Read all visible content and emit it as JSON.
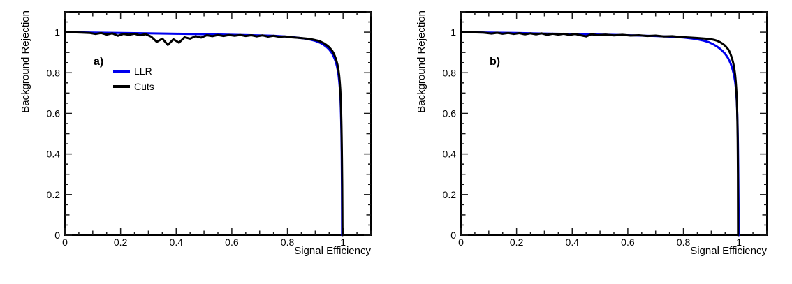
{
  "figure": {
    "background": "#ffffff",
    "accent_blue": "#0000ee",
    "line_black": "#000000"
  },
  "chart_data": [
    {
      "type": "line",
      "panel_label": "a)",
      "xlabel": "Signal Efficiency",
      "ylabel": "Background Rejection",
      "xlim": [
        0,
        1.1
      ],
      "ylim": [
        0,
        1.1
      ],
      "grid": false,
      "x_ticks": {
        "major": [
          {
            "v": 0,
            "label": "0"
          },
          {
            "v": 0.2,
            "label": "0.2"
          },
          {
            "v": 0.4,
            "label": "0.4"
          },
          {
            "v": 0.6,
            "label": "0.6"
          },
          {
            "v": 0.8,
            "label": "0.8"
          },
          {
            "v": 1.0,
            "label": "1"
          }
        ],
        "minor_step": 0.05
      },
      "y_ticks": {
        "major": [
          {
            "v": 0,
            "label": "0"
          },
          {
            "v": 0.2,
            "label": "0.2"
          },
          {
            "v": 0.4,
            "label": "0.4"
          },
          {
            "v": 0.6,
            "label": "0.6"
          },
          {
            "v": 0.8,
            "label": "0.8"
          },
          {
            "v": 1.0,
            "label": "1"
          }
        ],
        "minor_step": 0.05
      },
      "legend": {
        "visible": true,
        "position": "upper-left",
        "entries": [
          {
            "name": "LLR",
            "color": "#0000ee"
          },
          {
            "name": "Cuts",
            "color": "#000000"
          }
        ]
      },
      "series": [
        {
          "name": "LLR",
          "color": "#0000ee",
          "width": 3,
          "points": [
            [
              0,
              1.0
            ],
            [
              0.1,
              0.998
            ],
            [
              0.2,
              0.996
            ],
            [
              0.3,
              0.994
            ],
            [
              0.4,
              0.992
            ],
            [
              0.5,
              0.99
            ],
            [
              0.6,
              0.987
            ],
            [
              0.7,
              0.984
            ],
            [
              0.75,
              0.982
            ],
            [
              0.8,
              0.978
            ],
            [
              0.83,
              0.974
            ],
            [
              0.86,
              0.969
            ],
            [
              0.88,
              0.964
            ],
            [
              0.9,
              0.957
            ],
            [
              0.91,
              0.952
            ],
            [
              0.92,
              0.946
            ],
            [
              0.93,
              0.938
            ],
            [
              0.94,
              0.928
            ],
            [
              0.95,
              0.915
            ],
            [
              0.955,
              0.906
            ],
            [
              0.96,
              0.896
            ],
            [
              0.965,
              0.884
            ],
            [
              0.97,
              0.868
            ],
            [
              0.975,
              0.848
            ],
            [
              0.978,
              0.832
            ],
            [
              0.981,
              0.812
            ],
            [
              0.984,
              0.785
            ],
            [
              0.986,
              0.76
            ],
            [
              0.988,
              0.73
            ],
            [
              0.99,
              0.69
            ],
            [
              0.991,
              0.66
            ],
            [
              0.992,
              0.62
            ],
            [
              0.993,
              0.57
            ],
            [
              0.994,
              0.5
            ],
            [
              0.995,
              0.41
            ],
            [
              0.9955,
              0.33
            ],
            [
              0.996,
              0.23
            ],
            [
              0.9962,
              0.13
            ],
            [
              0.9965,
              0.0
            ]
          ]
        },
        {
          "name": "Cuts",
          "color": "#000000",
          "width": 3,
          "points": [
            [
              0,
              1.0
            ],
            [
              0.03,
              0.999
            ],
            [
              0.06,
              0.998
            ],
            [
              0.09,
              0.996
            ],
            [
              0.11,
              0.991
            ],
            [
              0.13,
              0.996
            ],
            [
              0.15,
              0.988
            ],
            [
              0.17,
              0.994
            ],
            [
              0.19,
              0.982
            ],
            [
              0.21,
              0.991
            ],
            [
              0.23,
              0.987
            ],
            [
              0.25,
              0.992
            ],
            [
              0.27,
              0.984
            ],
            [
              0.29,
              0.99
            ],
            [
              0.31,
              0.978
            ],
            [
              0.33,
              0.952
            ],
            [
              0.35,
              0.968
            ],
            [
              0.37,
              0.937
            ],
            [
              0.39,
              0.965
            ],
            [
              0.41,
              0.948
            ],
            [
              0.43,
              0.975
            ],
            [
              0.45,
              0.968
            ],
            [
              0.47,
              0.98
            ],
            [
              0.49,
              0.973
            ],
            [
              0.51,
              0.985
            ],
            [
              0.53,
              0.98
            ],
            [
              0.55,
              0.986
            ],
            [
              0.57,
              0.981
            ],
            [
              0.59,
              0.986
            ],
            [
              0.61,
              0.982
            ],
            [
              0.63,
              0.986
            ],
            [
              0.65,
              0.981
            ],
            [
              0.67,
              0.985
            ],
            [
              0.69,
              0.979
            ],
            [
              0.71,
              0.984
            ],
            [
              0.73,
              0.978
            ],
            [
              0.75,
              0.982
            ],
            [
              0.77,
              0.977
            ],
            [
              0.79,
              0.979
            ],
            [
              0.81,
              0.975
            ],
            [
              0.84,
              0.972
            ],
            [
              0.87,
              0.968
            ],
            [
              0.89,
              0.964
            ],
            [
              0.91,
              0.958
            ],
            [
              0.92,
              0.953
            ],
            [
              0.93,
              0.946
            ],
            [
              0.94,
              0.937
            ],
            [
              0.95,
              0.926
            ],
            [
              0.96,
              0.91
            ],
            [
              0.965,
              0.899
            ],
            [
              0.97,
              0.884
            ],
            [
              0.975,
              0.866
            ],
            [
              0.98,
              0.84
            ],
            [
              0.983,
              0.818
            ],
            [
              0.986,
              0.788
            ],
            [
              0.988,
              0.758
            ],
            [
              0.99,
              0.72
            ],
            [
              0.992,
              0.66
            ],
            [
              0.993,
              0.615
            ],
            [
              0.994,
              0.555
            ],
            [
              0.995,
              0.48
            ],
            [
              0.996,
              0.38
            ],
            [
              0.997,
              0.25
            ],
            [
              0.9975,
              0.14
            ],
            [
              0.998,
              0.0
            ]
          ]
        }
      ]
    },
    {
      "type": "line",
      "panel_label": "b)",
      "xlabel": "Signal Efficiency",
      "ylabel": "Background Rejection",
      "xlim": [
        0,
        1.1
      ],
      "ylim": [
        0,
        1.1
      ],
      "grid": false,
      "x_ticks": {
        "major": [
          {
            "v": 0,
            "label": "0"
          },
          {
            "v": 0.2,
            "label": "0.2"
          },
          {
            "v": 0.4,
            "label": "0.4"
          },
          {
            "v": 0.6,
            "label": "0.6"
          },
          {
            "v": 0.8,
            "label": "0.8"
          },
          {
            "v": 1.0,
            "label": "1"
          }
        ],
        "minor_step": 0.05
      },
      "y_ticks": {
        "major": [
          {
            "v": 0,
            "label": "0"
          },
          {
            "v": 0.2,
            "label": "0.2"
          },
          {
            "v": 0.4,
            "label": "0.4"
          },
          {
            "v": 0.6,
            "label": "0.6"
          },
          {
            "v": 0.8,
            "label": "0.8"
          },
          {
            "v": 1.0,
            "label": "1"
          }
        ],
        "minor_step": 0.05
      },
      "legend": {
        "visible": false,
        "entries": []
      },
      "series": [
        {
          "name": "LLR",
          "color": "#0000ee",
          "width": 3,
          "points": [
            [
              0,
              1.0
            ],
            [
              0.1,
              0.998
            ],
            [
              0.2,
              0.996
            ],
            [
              0.3,
              0.993
            ],
            [
              0.4,
              0.991
            ],
            [
              0.5,
              0.988
            ],
            [
              0.6,
              0.985
            ],
            [
              0.7,
              0.981
            ],
            [
              0.75,
              0.978
            ],
            [
              0.8,
              0.974
            ],
            [
              0.83,
              0.969
            ],
            [
              0.85,
              0.965
            ],
            [
              0.87,
              0.959
            ],
            [
              0.88,
              0.955
            ],
            [
              0.89,
              0.951
            ],
            [
              0.9,
              0.945
            ],
            [
              0.91,
              0.938
            ],
            [
              0.92,
              0.93
            ],
            [
              0.93,
              0.92
            ],
            [
              0.94,
              0.908
            ],
            [
              0.95,
              0.893
            ],
            [
              0.96,
              0.873
            ],
            [
              0.965,
              0.86
            ],
            [
              0.97,
              0.845
            ],
            [
              0.975,
              0.825
            ],
            [
              0.98,
              0.8
            ],
            [
              0.983,
              0.78
            ],
            [
              0.986,
              0.755
            ],
            [
              0.988,
              0.732
            ],
            [
              0.99,
              0.7
            ],
            [
              0.992,
              0.655
            ],
            [
              0.993,
              0.625
            ],
            [
              0.994,
              0.585
            ],
            [
              0.995,
              0.53
            ],
            [
              0.996,
              0.45
            ],
            [
              0.997,
              0.33
            ],
            [
              0.998,
              0.18
            ],
            [
              0.9985,
              0.08
            ],
            [
              0.999,
              0.0
            ]
          ]
        },
        {
          "name": "Cuts",
          "color": "#000000",
          "width": 3,
          "points": [
            [
              0,
              1.0
            ],
            [
              0.04,
              0.999
            ],
            [
              0.08,
              0.998
            ],
            [
              0.11,
              0.993
            ],
            [
              0.13,
              0.997
            ],
            [
              0.15,
              0.992
            ],
            [
              0.17,
              0.996
            ],
            [
              0.19,
              0.991
            ],
            [
              0.21,
              0.995
            ],
            [
              0.23,
              0.989
            ],
            [
              0.25,
              0.994
            ],
            [
              0.27,
              0.989
            ],
            [
              0.29,
              0.994
            ],
            [
              0.31,
              0.987
            ],
            [
              0.33,
              0.992
            ],
            [
              0.35,
              0.988
            ],
            [
              0.37,
              0.992
            ],
            [
              0.39,
              0.986
            ],
            [
              0.41,
              0.991
            ],
            [
              0.43,
              0.985
            ],
            [
              0.45,
              0.979
            ],
            [
              0.47,
              0.99
            ],
            [
              0.49,
              0.985
            ],
            [
              0.52,
              0.988
            ],
            [
              0.55,
              0.984
            ],
            [
              0.58,
              0.987
            ],
            [
              0.61,
              0.983
            ],
            [
              0.64,
              0.985
            ],
            [
              0.67,
              0.981
            ],
            [
              0.7,
              0.983
            ],
            [
              0.73,
              0.979
            ],
            [
              0.76,
              0.98
            ],
            [
              0.79,
              0.976
            ],
            [
              0.82,
              0.974
            ],
            [
              0.85,
              0.971
            ],
            [
              0.87,
              0.969
            ],
            [
              0.89,
              0.967
            ],
            [
              0.9,
              0.965
            ],
            [
              0.91,
              0.962
            ],
            [
              0.92,
              0.958
            ],
            [
              0.93,
              0.952
            ],
            [
              0.94,
              0.944
            ],
            [
              0.95,
              0.933
            ],
            [
              0.96,
              0.917
            ],
            [
              0.965,
              0.906
            ],
            [
              0.97,
              0.89
            ],
            [
              0.975,
              0.87
            ],
            [
              0.98,
              0.843
            ],
            [
              0.983,
              0.82
            ],
            [
              0.986,
              0.79
            ],
            [
              0.988,
              0.76
            ],
            [
              0.99,
              0.722
            ],
            [
              0.992,
              0.668
            ],
            [
              0.993,
              0.625
            ],
            [
              0.994,
              0.565
            ],
            [
              0.995,
              0.48
            ],
            [
              0.9955,
              0.4
            ],
            [
              0.996,
              0.3
            ],
            [
              0.9963,
              0.16
            ],
            [
              0.9965,
              0.0
            ]
          ]
        }
      ]
    }
  ]
}
